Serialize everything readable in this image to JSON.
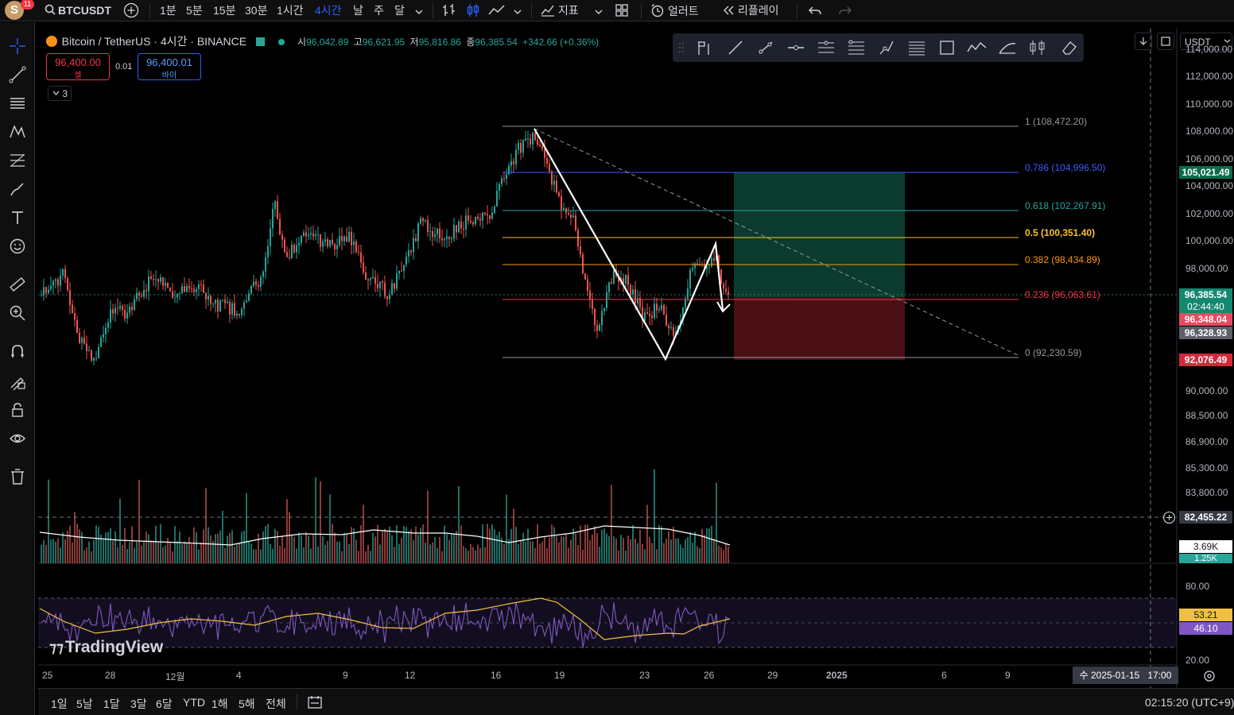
{
  "topbar": {
    "avatar_letter": "S",
    "notif_count": "11",
    "symbol": "BTCUSDT",
    "timeframes": [
      "1분",
      "5분",
      "15분",
      "30분",
      "1시간",
      "4시간",
      "날",
      "주",
      "달"
    ],
    "active_timeframe": "4시간",
    "indicators_label": "지표",
    "alerts_label": "얼러트",
    "replay_label": "리플레이"
  },
  "legend": {
    "title": "Bitcoin / TetherUS · 4시간 · BINANCE",
    "open_label": "시",
    "open": "96,042.89",
    "high_label": "고",
    "high": "96,621.95",
    "low_label": "저",
    "low": "95,816.86",
    "close_label": "종",
    "close": "96,385.54",
    "change": "+342.66 (+0.36%)",
    "sell_price": "96,400.00",
    "sell_label": "셀",
    "spread": "0.01",
    "buy_price": "96,400.01",
    "buy_label": "바이",
    "collapse_count": "3"
  },
  "currency": "USDT",
  "price_axis": [
    {
      "label": "114,000.00",
      "price": 114000
    },
    {
      "label": "112,000.00",
      "price": 112000
    },
    {
      "label": "110,000.00",
      "price": 110000
    },
    {
      "label": "108,000.00",
      "price": 108000
    },
    {
      "label": "106,000.00",
      "price": 106000
    },
    {
      "label": "104,000.00",
      "price": 104000
    },
    {
      "label": "102,000.00",
      "price": 102000
    },
    {
      "label": "100,000.00",
      "price": 100000
    },
    {
      "label": "98,000.00",
      "price": 98000
    },
    {
      "label": "90,000.00",
      "price": 90000
    },
    {
      "label": "88,500.00",
      "price": 88500
    },
    {
      "label": "86,900.00",
      "price": 86900
    },
    {
      "label": "85,300.00",
      "price": 85300
    },
    {
      "label": "83,800.00",
      "price": 83800
    }
  ],
  "price_tags": {
    "tp": "105,021.49",
    "last": "96,385.54",
    "countdown": "02:44:40",
    "entry_red": "96,348.04",
    "entry_grey": "96,328.93",
    "sl": "92,076.49",
    "crosshair": "82,455.22",
    "vol1": "3.69K",
    "vol2": "1.25K"
  },
  "fib_levels": [
    {
      "text": "1 (108,472.20)",
      "color": "#9598a1"
    },
    {
      "text": "0.786 (104,996.50)",
      "color": "#3d5afe"
    },
    {
      "text": "0.618 (102,267.91)",
      "color": "#26a69a"
    },
    {
      "text": "0.5 (100,351.40)",
      "color": "#fbc02d"
    },
    {
      "text": "0.382 (98,434.89)",
      "color": "#ff9800"
    },
    {
      "text": "0.236 (96,063.61)",
      "color": "#f23645"
    },
    {
      "text": "0 (92,230.59)",
      "color": "#9598a1"
    }
  ],
  "rsi_axis": [
    "80.00",
    "20.00"
  ],
  "rsi_tags": {
    "ma": "53.21",
    "rsi": "46.10"
  },
  "time_axis": [
    "25",
    "28",
    "12월",
    "4",
    "9",
    "12",
    "16",
    "19",
    "23",
    "26",
    "29",
    "2025",
    "6",
    "9"
  ],
  "crosshair_time": "수 2025-01-15   17:00",
  "watermark": "TradingView",
  "bottombar": {
    "ranges": [
      "1일",
      "5날",
      "1달",
      "3달",
      "6달",
      "YTD",
      "1해",
      "5해",
      "전체"
    ],
    "clock": "02:15:20 (UTC+9)"
  },
  "colors": {
    "up": "#26a69a",
    "down": "#ef5350",
    "accent": "#2962ff",
    "tp_zone": "#0b3b2e",
    "sl_zone": "#4a1016"
  }
}
